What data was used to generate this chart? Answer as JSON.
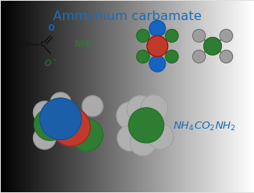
{
  "title": "Ammonium carbamate",
  "title_color": "#1a6eb5",
  "title_fontsize": 11.5,
  "bg_color": "#e8e8e8",
  "formula_color": "#1a6eb5",
  "green_color": "#2e7d32",
  "red_color": "#c0392b",
  "blue_color": "#1565c0",
  "grey_color": "#9e9e9e",
  "black_color": "#111111",
  "nh4_color": "#2e7d32",
  "o_color": "#1565c0",
  "ominus_color": "#2e7d32"
}
